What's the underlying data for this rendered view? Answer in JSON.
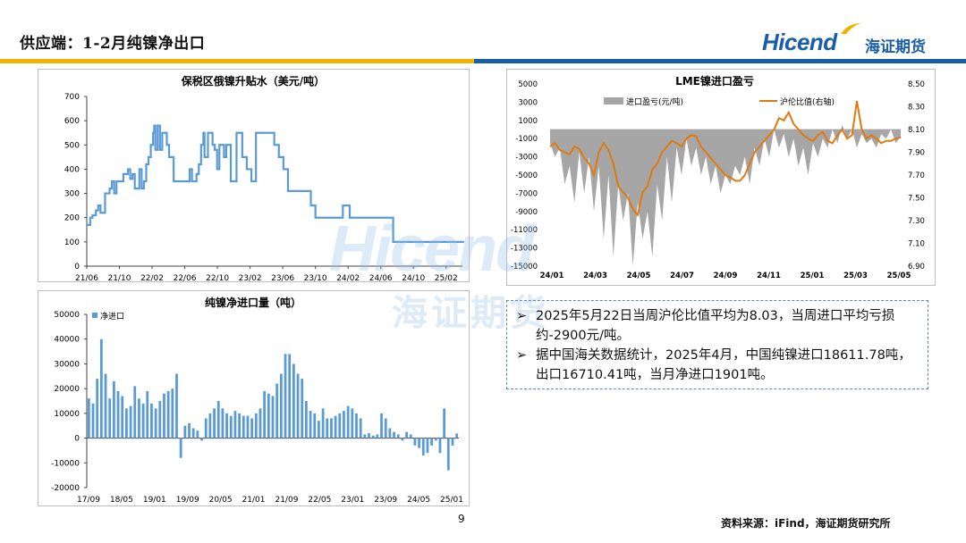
{
  "header": {
    "title": "供应端：1-2月纯镍净出口",
    "logo_en": "Hicend",
    "logo_cn": "海证期货"
  },
  "colors": {
    "bar_yellow": "#f0b400",
    "bar_blue": "#1a5ea8",
    "series_blue": "#5b9bd5",
    "area_gray": "#a6a6a6",
    "line_orange": "#e07a10"
  },
  "chart_data": [
    {
      "type": "line",
      "title": "保税区俄镍升贴水（美元/吨）",
      "ylim": [
        0,
        700
      ],
      "yticks": [
        0,
        100,
        200,
        300,
        400,
        500,
        600,
        700
      ],
      "xtick_labels": [
        "21/06",
        "21/10",
        "22/02",
        "22/06",
        "22/10",
        "23/02",
        "23/06",
        "23/10",
        "24/02",
        "24/06",
        "24/10",
        "25/02"
      ],
      "series": [
        {
          "values": [
            [
              0,
              170
            ],
            [
              0.15,
              200
            ],
            [
              0.25,
              210
            ],
            [
              0.4,
              230
            ],
            [
              0.5,
              250
            ],
            [
              0.6,
              220
            ],
            [
              0.8,
              300
            ],
            [
              1,
              320
            ],
            [
              1.1,
              350
            ],
            [
              1.2,
              300
            ],
            [
              1.3,
              350
            ],
            [
              1.5,
              350
            ],
            [
              1.6,
              380
            ],
            [
              1.8,
              400
            ],
            [
              1.9,
              360
            ],
            [
              2,
              380
            ],
            [
              2.1,
              320
            ],
            [
              2.3,
              400
            ],
            [
              2.4,
              320
            ],
            [
              2.5,
              350
            ],
            [
              2.6,
              420
            ],
            [
              2.7,
              450
            ],
            [
              2.8,
              500
            ],
            [
              2.9,
              550
            ],
            [
              2.95,
              580
            ],
            [
              3.0,
              480
            ],
            [
              3.1,
              580
            ],
            [
              3.2,
              480
            ],
            [
              3.3,
              550
            ],
            [
              3.5,
              500
            ],
            [
              3.6,
              450
            ],
            [
              3.8,
              350
            ],
            [
              4.0,
              350
            ],
            [
              4.3,
              350
            ],
            [
              4.5,
              400
            ],
            [
              4.6,
              350
            ],
            [
              4.8,
              380
            ],
            [
              4.9,
              420
            ],
            [
              5.0,
              500
            ],
            [
              5.1,
              550
            ],
            [
              5.15,
              450
            ],
            [
              5.3,
              550
            ],
            [
              5.5,
              500
            ],
            [
              5.6,
              480
            ],
            [
              5.7,
              400
            ],
            [
              5.8,
              500
            ],
            [
              6.0,
              450
            ],
            [
              6.1,
              500
            ],
            [
              6.2,
              500
            ],
            [
              6.3,
              350
            ],
            [
              6.5,
              350
            ],
            [
              6.55,
              550
            ],
            [
              6.7,
              550
            ],
            [
              6.8,
              450
            ],
            [
              7.0,
              400
            ],
            [
              7.2,
              350
            ],
            [
              7.3,
              350
            ],
            [
              7.4,
              550
            ],
            [
              8.0,
              550
            ],
            [
              8.2,
              500
            ],
            [
              8.4,
              450
            ],
            [
              8.6,
              400
            ],
            [
              8.8,
              310
            ],
            [
              9.5,
              310
            ],
            [
              9.8,
              250
            ],
            [
              10.0,
              200
            ],
            [
              10.8,
              200
            ],
            [
              11.2,
              250
            ],
            [
              11.4,
              250
            ],
            [
              11.5,
              200
            ],
            [
              12.0,
              200
            ],
            [
              12.5,
              200
            ],
            [
              13.0,
              200
            ],
            [
              13.3,
              200
            ],
            [
              13.4,
              100
            ],
            [
              14.0,
              100
            ],
            [
              15.0,
              100
            ],
            [
              16.0,
              100
            ],
            [
              16.5,
              100
            ]
          ]
        }
      ]
    },
    {
      "type": "bar",
      "title": "纯镍净进口量（吨）",
      "ylim": [
        -20000,
        50000
      ],
      "yticks": [
        -20000,
        -10000,
        0,
        10000,
        20000,
        30000,
        40000,
        50000
      ],
      "xtick_labels": [
        "17/09",
        "18/05",
        "19/01",
        "19/09",
        "20/05",
        "21/01",
        "21/09",
        "22/05",
        "23/01",
        "23/09",
        "24/05",
        "25/01"
      ],
      "series": [
        {
          "name": "净进口",
          "values": [
            16000,
            14000,
            24000,
            40000,
            26000,
            16000,
            23000,
            19000,
            17000,
            12000,
            13000,
            21000,
            16000,
            14000,
            19000,
            14000,
            12000,
            15000,
            18000,
            19000,
            20000,
            26000,
            -8000,
            5000,
            6000,
            4000,
            3000,
            -1000,
            8000,
            10000,
            12000,
            15000,
            12000,
            10000,
            9000,
            11000,
            10000,
            9000,
            9000,
            8000,
            10000,
            12000,
            19000,
            18000,
            17000,
            22000,
            26000,
            34000,
            34000,
            30000,
            26000,
            24000,
            15000,
            11000,
            10000,
            7000,
            12000,
            8000,
            8000,
            9000,
            10000,
            11000,
            13000,
            12000,
            10000,
            8000,
            1500,
            2000,
            1000,
            1500,
            10000,
            8000,
            4000,
            2500,
            1500,
            -1000,
            2500,
            1500,
            -3000,
            -4000,
            -7000,
            -6000,
            -3000,
            -1000,
            -6000,
            12000,
            -13000,
            -3000,
            1900
          ]
        }
      ]
    },
    {
      "type": "area",
      "title": "LME镍进口盈亏",
      "ylim": [
        -15000,
        5000
      ],
      "yticks": [
        5000,
        3000,
        1000,
        -1000,
        -3000,
        -5000,
        -7000,
        -9000,
        -11000,
        -13000,
        -15000
      ],
      "y2lim": [
        6.9,
        8.5
      ],
      "y2ticks": [
        "8.50",
        "8.30",
        "8.10",
        "7.90",
        "7.70",
        "7.50",
        "7.30",
        "7.10",
        "6.90"
      ],
      "xtick_labels": [
        "24/01",
        "24/03",
        "24/05",
        "24/07",
        "24/09",
        "24/11",
        "25/01",
        "25/03",
        "25/05"
      ],
      "series": [
        {
          "name": "进口盈亏(元/吨)",
          "values": [
            -1500,
            -3000,
            -2000,
            -6000,
            -4000,
            -8000,
            -2500,
            -7000,
            -3000,
            -9000,
            -4000,
            -12000,
            -5000,
            -14000,
            -6000,
            -10000,
            -7000,
            -15000,
            -8000,
            -12000,
            -9000,
            -14000,
            -6000,
            -10000,
            -3000,
            -8000,
            -2000,
            -5000,
            -1000,
            -4000,
            -2000,
            -5000,
            -3000,
            -6000,
            -4000,
            -7000,
            -5000,
            -6000,
            -4000,
            -5000,
            -3000,
            -6000,
            -2000,
            -4000,
            -1000,
            -3000,
            0,
            -2000,
            -500,
            -3000,
            -1000,
            -4000,
            -2000,
            -5000,
            -1500,
            -3000,
            -1000,
            -2000,
            0,
            -1500,
            500,
            -1000,
            0,
            -2000,
            -500,
            -1500,
            -1000,
            -2000,
            -500,
            -1000,
            0,
            -1500,
            -800
          ]
        },
        {
          "name": "沪伦比值(右轴)",
          "values": [
            7.95,
            7.98,
            7.92,
            7.9,
            7.88,
            7.95,
            7.93,
            7.85,
            7.8,
            7.7,
            7.9,
            7.98,
            7.92,
            7.8,
            7.6,
            7.55,
            7.5,
            7.4,
            7.35,
            7.55,
            7.6,
            7.75,
            7.8,
            7.9,
            7.95,
            8.0,
            7.98,
            7.95,
            8.02,
            8.05,
            8.04,
            7.95,
            7.9,
            7.85,
            7.8,
            7.75,
            7.7,
            7.68,
            7.65,
            7.65,
            7.7,
            7.8,
            7.9,
            7.95,
            8.0,
            8.05,
            8.1,
            8.2,
            8.18,
            8.25,
            8.15,
            8.1,
            8.05,
            8.02,
            8.0,
            8.05,
            8.08,
            8.0,
            7.98,
            8.05,
            8.1,
            8.02,
            8.05,
            8.35,
            8.1,
            8.02,
            8.05,
            8.02,
            7.98,
            8.0,
            8.0,
            8.02,
            8.03
          ]
        }
      ]
    }
  ],
  "note": {
    "bullet_mark": "➢",
    "items": [
      "2025年5月22日当周沪伦比值平均为8.03，当周进口平均亏损约-2900元/吨。",
      "据中国海关数据统计，2025年4月，中国纯镍进口18611.78吨，出口16710.41吨，当月净进口1901吨。"
    ]
  },
  "footer": {
    "page_number": "9",
    "source": "资料来源：iFind，海证期货研究所"
  },
  "watermark": {
    "en": "Hicend",
    "cn": "海证期货"
  }
}
